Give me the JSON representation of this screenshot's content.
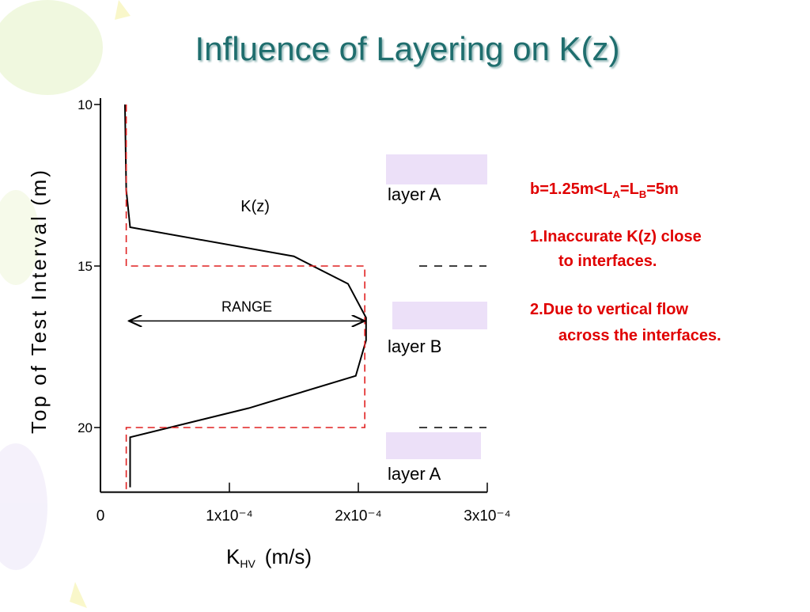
{
  "title": "Influence of Layering on K(z)",
  "chart_data": {
    "type": "line",
    "ylabel": "Top of Test Interval (m)",
    "xlabel_parts": [
      "K",
      "HV",
      "(m/s)"
    ],
    "xlim": [
      0,
      0.0003
    ],
    "xticks": [
      0,
      {
        "value": 0.0001,
        "label": "1x10⁻⁴"
      },
      {
        "value": 0.0002,
        "label": "2x10⁻⁴"
      },
      {
        "value": 0.0003,
        "label": "3x10⁻⁴"
      }
    ],
    "ylim": [
      10,
      22
    ],
    "yticks": [
      10,
      15,
      20
    ],
    "y_inverted": true,
    "series": [
      {
        "color": "#000000",
        "dashed": false,
        "x": [
          1.9e-05,
          2e-05,
          2.3e-05,
          0.00015,
          0.000192,
          0.000206,
          0.000206,
          0.000198,
          0.000115,
          2.3e-05,
          2.3e-05
        ],
        "values": [
          10,
          12.65,
          13.8,
          14.7,
          15.55,
          16.6,
          17.3,
          18.4,
          19.4,
          20.3,
          21.85
        ]
      },
      {
        "color": "#e02020",
        "dashed": true,
        "x": [
          2e-05,
          2e-05,
          0.000205,
          0.000205,
          2e-05,
          2e-05
        ],
        "values": [
          10,
          15,
          15,
          20,
          20,
          22
        ]
      }
    ],
    "annotations": [
      {
        "text": "K(z)",
        "x": 0.00012,
        "y": 13.8
      },
      {
        "text": "RANGE",
        "x": [
          2.2e-05,
          0.000205
        ],
        "y": 16.7
      }
    ],
    "layers": [
      "layer A",
      "layer B",
      "layer A"
    ],
    "interfaces": [
      15,
      20
    ]
  },
  "notes": {
    "condition_parts": [
      "b=1.25m<L",
      "A",
      "=L",
      "B",
      "=5m"
    ],
    "items": [
      [
        "1.Inaccurate K(z) close",
        "to interfaces."
      ],
      [
        "2.Due to vertical flow",
        "across the interfaces."
      ]
    ]
  }
}
